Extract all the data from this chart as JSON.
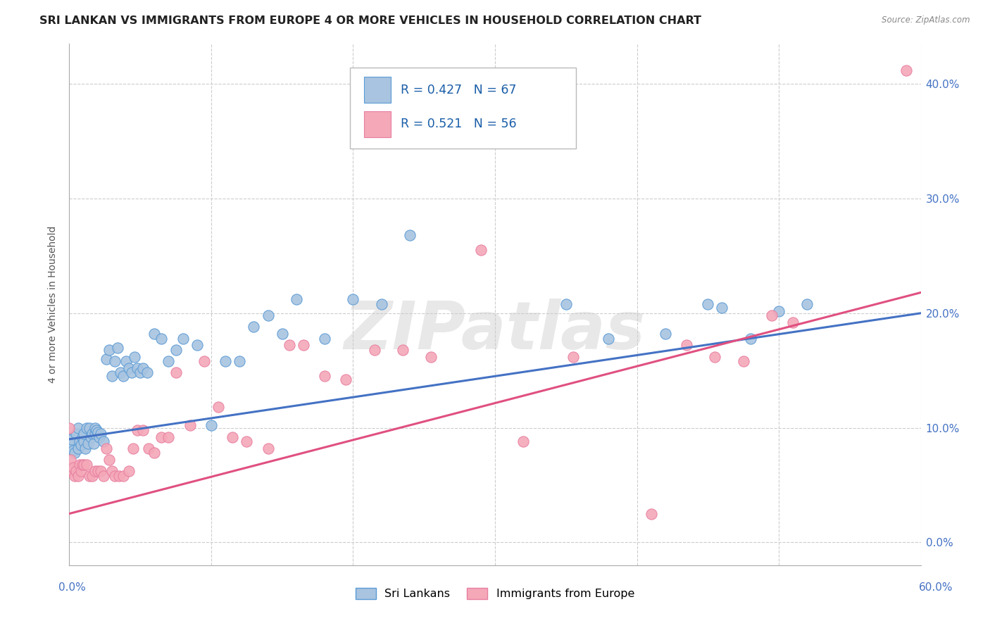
{
  "title": "SRI LANKAN VS IMMIGRANTS FROM EUROPE 4 OR MORE VEHICLES IN HOUSEHOLD CORRELATION CHART",
  "source": "Source: ZipAtlas.com",
  "ylabel": "4 or more Vehicles in Household",
  "xlim": [
    0.0,
    0.6
  ],
  "ylim": [
    -0.02,
    0.435
  ],
  "legend_entries": [
    {
      "label": "Sri Lankans",
      "R": "0.427",
      "N": "67",
      "color": "#a8c4e0",
      "edge": "#5b9bd5"
    },
    {
      "label": "Immigrants from Europe",
      "R": "0.521",
      "N": "56",
      "color": "#f4a8b8",
      "edge": "#e87fa0"
    }
  ],
  "blue_scatter_x": [
    0.0,
    0.001,
    0.002,
    0.003,
    0.004,
    0.005,
    0.006,
    0.006,
    0.007,
    0.008,
    0.009,
    0.01,
    0.01,
    0.011,
    0.012,
    0.013,
    0.014,
    0.015,
    0.016,
    0.017,
    0.018,
    0.018,
    0.019,
    0.02,
    0.021,
    0.022,
    0.024,
    0.026,
    0.028,
    0.03,
    0.032,
    0.034,
    0.036,
    0.038,
    0.04,
    0.042,
    0.044,
    0.046,
    0.048,
    0.05,
    0.052,
    0.055,
    0.06,
    0.065,
    0.07,
    0.075,
    0.08,
    0.09,
    0.1,
    0.11,
    0.12,
    0.13,
    0.14,
    0.15,
    0.16,
    0.18,
    0.2,
    0.22,
    0.24,
    0.35,
    0.38,
    0.42,
    0.45,
    0.46,
    0.48,
    0.5,
    0.52
  ],
  "blue_scatter_y": [
    0.09,
    0.085,
    0.09,
    0.08,
    0.078,
    0.095,
    0.082,
    0.1,
    0.088,
    0.085,
    0.092,
    0.088,
    0.095,
    0.082,
    0.1,
    0.086,
    0.1,
    0.092,
    0.095,
    0.086,
    0.095,
    0.1,
    0.098,
    0.096,
    0.092,
    0.095,
    0.088,
    0.16,
    0.168,
    0.145,
    0.158,
    0.17,
    0.148,
    0.145,
    0.158,
    0.152,
    0.148,
    0.162,
    0.152,
    0.148,
    0.152,
    0.148,
    0.182,
    0.178,
    0.158,
    0.168,
    0.178,
    0.172,
    0.102,
    0.158,
    0.158,
    0.188,
    0.198,
    0.182,
    0.212,
    0.178,
    0.212,
    0.208,
    0.268,
    0.208,
    0.178,
    0.182,
    0.208,
    0.205,
    0.178,
    0.202,
    0.208
  ],
  "pink_scatter_x": [
    0.0,
    0.001,
    0.002,
    0.003,
    0.004,
    0.005,
    0.006,
    0.007,
    0.008,
    0.009,
    0.01,
    0.012,
    0.014,
    0.016,
    0.018,
    0.02,
    0.022,
    0.024,
    0.026,
    0.028,
    0.03,
    0.032,
    0.035,
    0.038,
    0.042,
    0.045,
    0.048,
    0.052,
    0.056,
    0.06,
    0.065,
    0.07,
    0.075,
    0.085,
    0.095,
    0.105,
    0.115,
    0.125,
    0.14,
    0.155,
    0.165,
    0.18,
    0.195,
    0.215,
    0.235,
    0.255,
    0.29,
    0.32,
    0.355,
    0.41,
    0.435,
    0.455,
    0.475,
    0.495,
    0.51,
    0.59
  ],
  "pink_scatter_y": [
    0.1,
    0.072,
    0.062,
    0.065,
    0.058,
    0.062,
    0.058,
    0.068,
    0.062,
    0.068,
    0.068,
    0.068,
    0.058,
    0.058,
    0.062,
    0.062,
    0.062,
    0.058,
    0.082,
    0.072,
    0.062,
    0.058,
    0.058,
    0.058,
    0.062,
    0.082,
    0.098,
    0.098,
    0.082,
    0.078,
    0.092,
    0.092,
    0.148,
    0.102,
    0.158,
    0.118,
    0.092,
    0.088,
    0.082,
    0.172,
    0.172,
    0.145,
    0.142,
    0.168,
    0.168,
    0.162,
    0.255,
    0.088,
    0.162,
    0.025,
    0.172,
    0.162,
    0.158,
    0.198,
    0.192,
    0.412
  ],
  "blue_line_x": [
    0.0,
    0.6
  ],
  "blue_line_y": [
    0.09,
    0.2
  ],
  "pink_line_x": [
    0.0,
    0.6
  ],
  "pink_line_y": [
    0.025,
    0.218
  ],
  "blue_line_color": "#4472c4",
  "pink_line_color": "#e05080",
  "blue_scatter_color": "#a8c4e0",
  "blue_edge_color": "#5b9bd5",
  "pink_scatter_color": "#f4a8b8",
  "pink_edge_color": "#e87fa0",
  "grid_color": "#cccccc",
  "watermark_text": "ZIPatlas",
  "title_fontsize": 11.5,
  "axis_label_fontsize": 10,
  "tick_fontsize": 11,
  "right_tick_color": "#4472c4"
}
